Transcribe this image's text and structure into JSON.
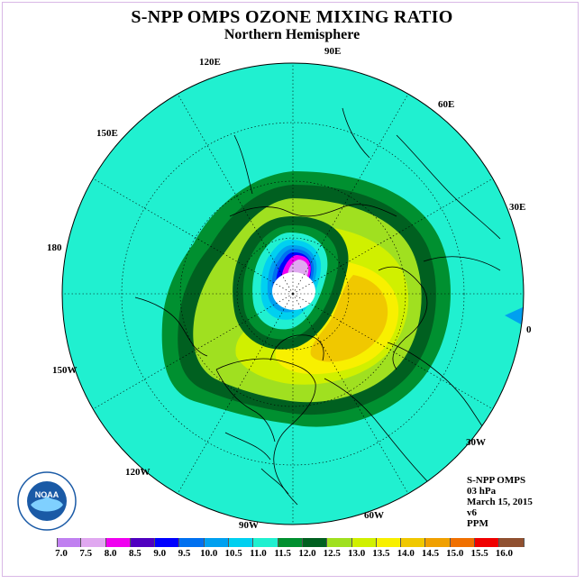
{
  "title": "S-NPP OMPS OZONE MIXING RATIO",
  "subtitle": "Northern Hemisphere",
  "longitude_labels": [
    "90E",
    "60E",
    "30E",
    "0",
    "30W",
    "60W",
    "90W",
    "120W",
    "150W",
    "180",
    "150E",
    "120E"
  ],
  "info": {
    "product": "S-NPP OMPS",
    "level": "03 hPa",
    "date": "March 15, 2015",
    "version": "v6",
    "units": "PPM"
  },
  "logo": {
    "text": "NOAA"
  },
  "colorbar": {
    "ticks": [
      "7.0",
      "7.5",
      "8.0",
      "8.5",
      "9.0",
      "9.5",
      "10.0",
      "10.5",
      "11.0",
      "11.5",
      "12.0",
      "12.5",
      "13.0",
      "13.5",
      "14.0",
      "14.5",
      "15.0",
      "15.5",
      "16.0"
    ],
    "colors": [
      "#c080f0",
      "#e0a8f0",
      "#f000f0",
      "#5000c0",
      "#0000ff",
      "#0070f0",
      "#00a0f0",
      "#00d0f0",
      "#20f0d0",
      "#009030",
      "#006020",
      "#a0e020",
      "#d0f000",
      "#f8f000",
      "#f0c800",
      "#f0a000",
      "#f07000",
      "#f00000",
      "#905030"
    ]
  }
}
